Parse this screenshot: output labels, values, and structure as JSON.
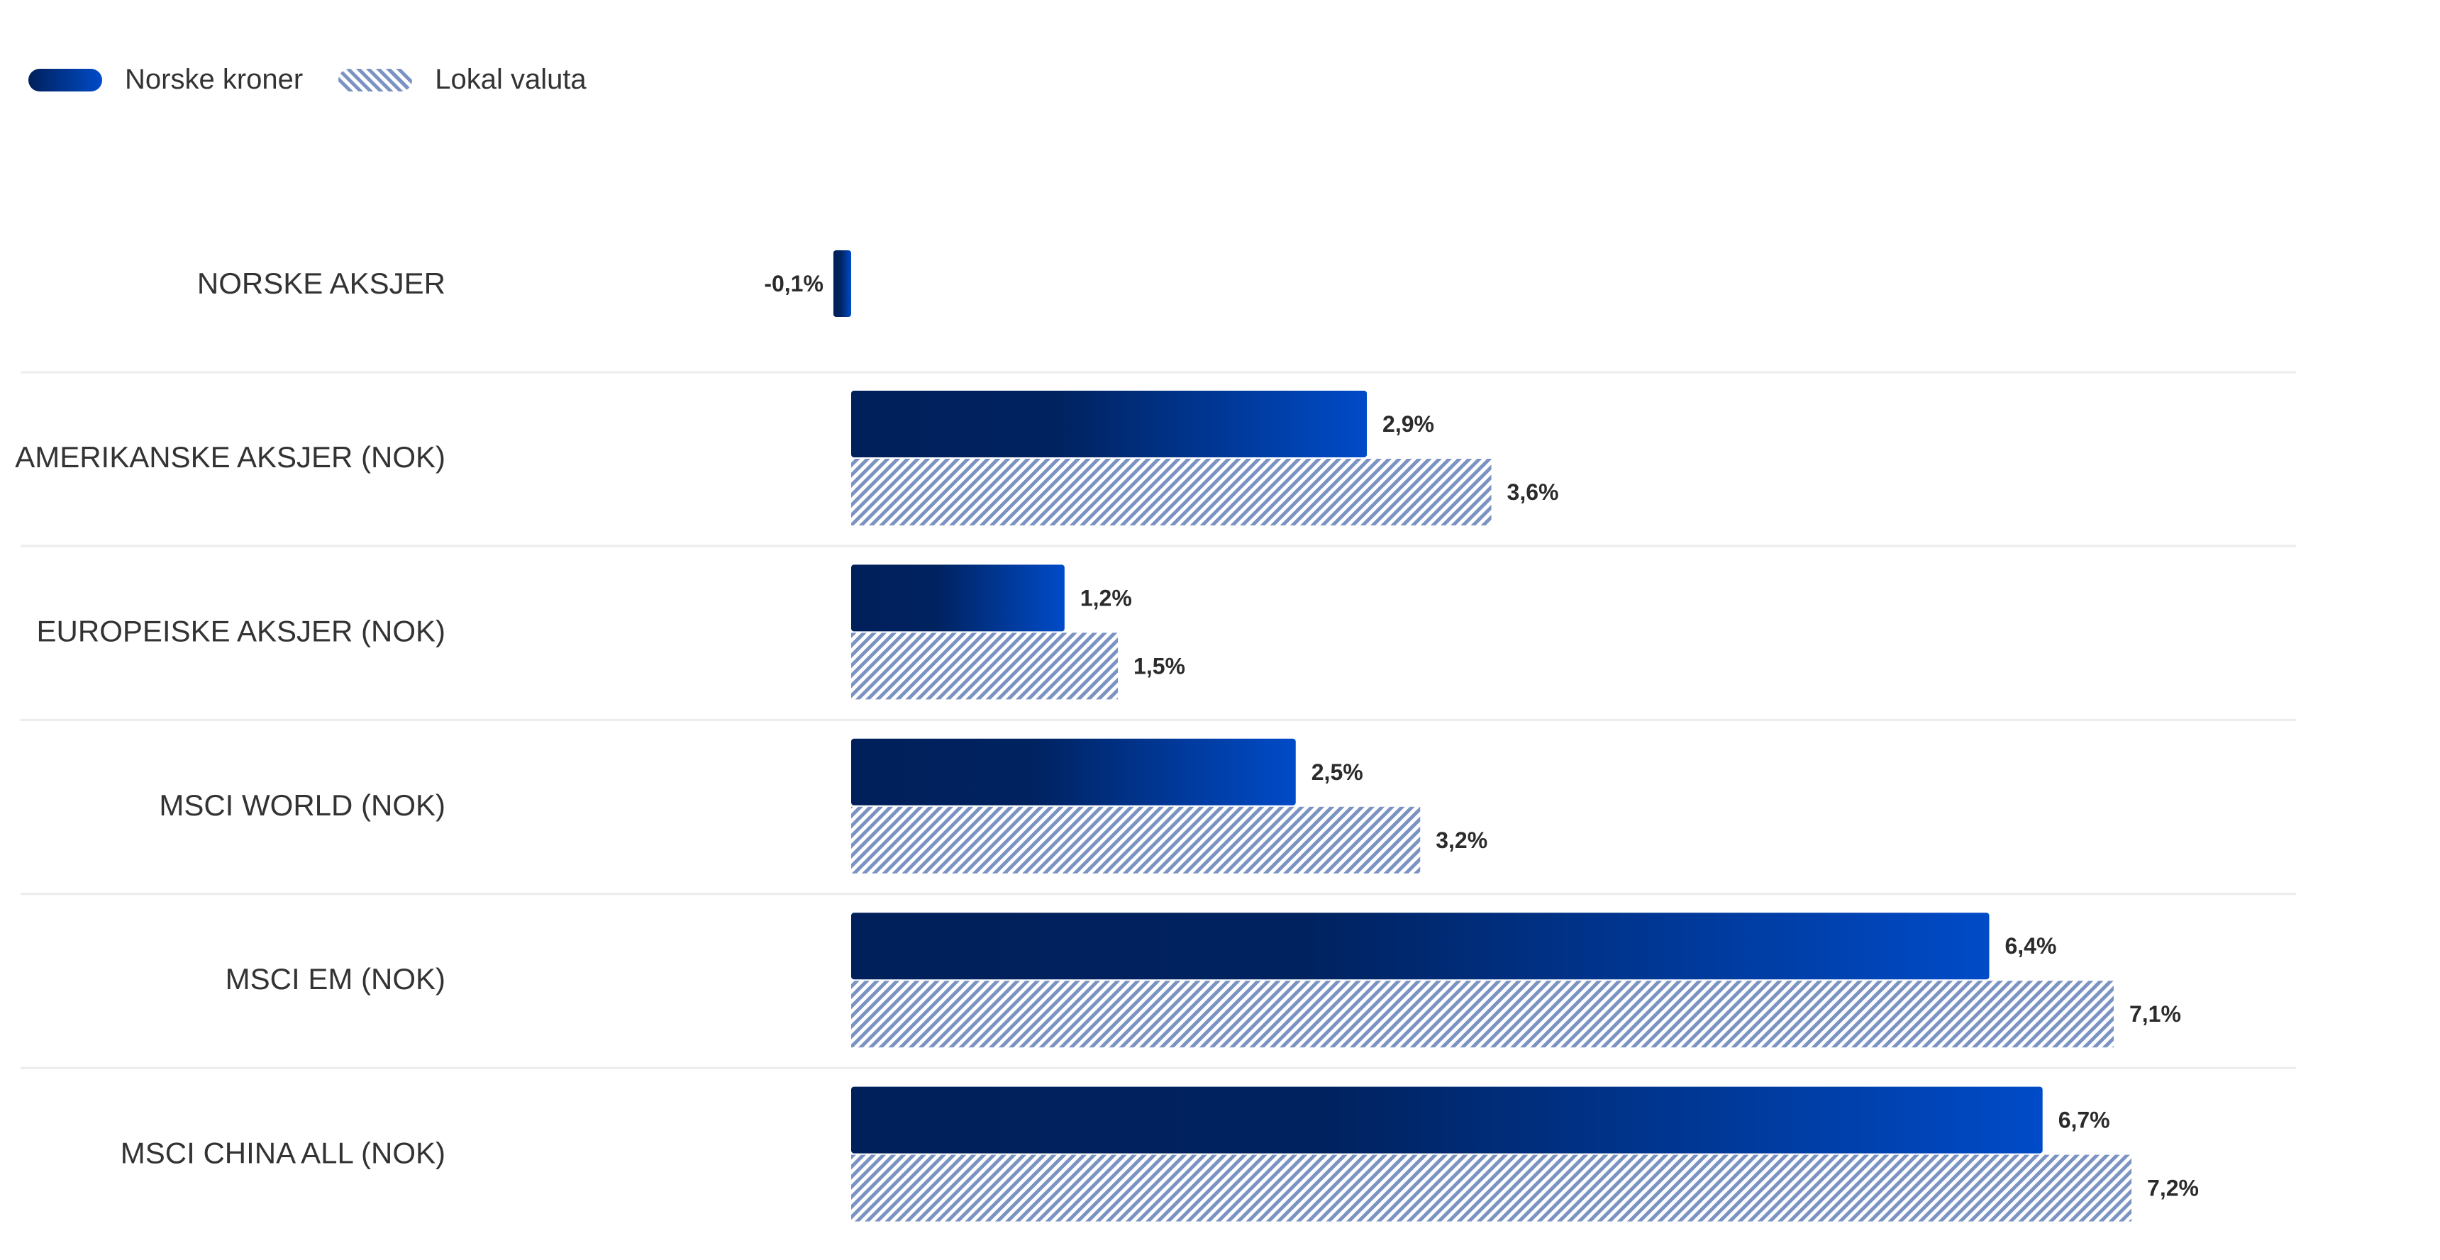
{
  "chart_data": {
    "type": "bar",
    "orientation": "horizontal",
    "categories": [
      "NORSKE AKSJER",
      "AMERIKANSKE AKSJER (NOK)",
      "EUROPEISKE AKSJER (NOK)",
      "MSCI WORLD (NOK)",
      "MSCI EM (NOK)",
      "MSCI CHINA ALL (NOK)"
    ],
    "series": [
      {
        "name": "Norske kroner",
        "values": [
          -0.1,
          2.9,
          1.2,
          2.5,
          6.4,
          6.7
        ],
        "labels": [
          "-0,1%",
          "2,9%",
          "1,2%",
          "2,5%",
          "6,4%",
          "6,7%"
        ],
        "color_start": "#00205b",
        "color_end": "#004bc8"
      },
      {
        "name": "Lokal valuta",
        "values": [
          null,
          3.6,
          1.5,
          3.2,
          7.1,
          7.2
        ],
        "labels": [
          null,
          "3,6%",
          "1,5%",
          "3,2%",
          "7,1%",
          "7,2%"
        ],
        "color": "#7b93c2",
        "pattern": "hatched"
      }
    ],
    "legend_position": "top-left",
    "grid": false,
    "row_separators": true
  }
}
